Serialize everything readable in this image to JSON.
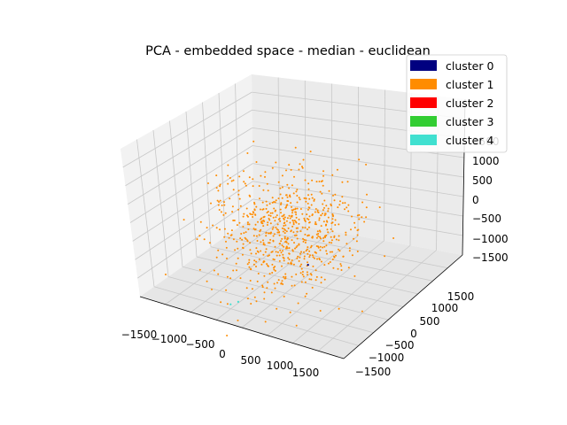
{
  "chart_data": {
    "type": "scatter",
    "subtype": "3d-scatter",
    "title": "PCA - embedded space - median - euclidean",
    "legend": {
      "placement": "top-right",
      "entries": [
        {
          "label": "cluster 0",
          "color": "#000080"
        },
        {
          "label": "cluster 1",
          "color": "#ff8c00"
        },
        {
          "label": "cluster 2",
          "color": "#ff0000"
        },
        {
          "label": "cluster 3",
          "color": "#32cd32"
        },
        {
          "label": "cluster 4",
          "color": "#40e0d0"
        }
      ]
    },
    "x_axis": {
      "ticks": [
        "−1500",
        "−1000",
        "−500",
        "0",
        "500",
        "1000",
        "1500"
      ],
      "range": [
        -1800,
        1800
      ]
    },
    "y_axis": {
      "ticks": [
        "−1500",
        "−1000",
        "−500",
        "0",
        "500",
        "1000",
        "1500"
      ],
      "range": [
        -1800,
        1800
      ]
    },
    "z_axis": {
      "ticks": [
        "−1500",
        "−1000",
        "−500",
        "0",
        "500",
        "1000",
        "1500"
      ],
      "range": [
        -1800,
        1800
      ]
    },
    "grid": true,
    "point_count_estimate": 750,
    "series": [
      {
        "name": "cluster 1",
        "color": "#ff8c00",
        "distribution": "roughly spherical cloud centered at origin, spread ~±1000",
        "approx_count": 740
      },
      {
        "name": "cluster 0",
        "color": "#000080",
        "approx_count": 1,
        "sample_points": [
          [
            600,
            -400,
            -200
          ]
        ]
      },
      {
        "name": "cluster 4",
        "color": "#40e0d0",
        "approx_count": 2,
        "sample_points": [
          [
            -200,
            -1300,
            -700
          ],
          [
            -100,
            -1250,
            -650
          ]
        ]
      }
    ]
  }
}
